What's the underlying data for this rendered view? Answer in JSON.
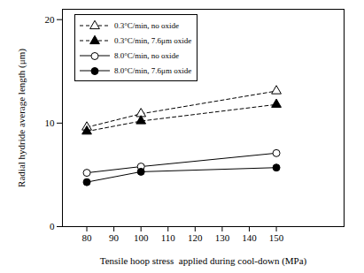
{
  "chart_data": {
    "type": "line",
    "x_label": "Tensile hoop stress  applied during cool-down (MPa)",
    "y_label": "Radial hydride average length (μm)",
    "x": [
      80,
      100,
      150
    ],
    "series": [
      {
        "name": "0.3°C/min, no oxide",
        "color": "#000000",
        "marker": "triangle-open",
        "line_style": "dashed",
        "values": [
          9.6,
          10.9,
          13.1
        ]
      },
      {
        "name": "0.3°C/min, 7.6μm oxide",
        "color": "#000000",
        "marker": "triangle",
        "line_style": "dashed",
        "values": [
          9.2,
          10.2,
          11.8
        ]
      },
      {
        "name": "8.0°C/min, no oxide",
        "color": "#000000",
        "marker": "circle-open",
        "line_style": "solid",
        "values": [
          5.2,
          5.8,
          7.1
        ]
      },
      {
        "name": "8.0°C/min, 7.6μm oxide",
        "color": "#000000",
        "marker": "circle",
        "line_style": "solid",
        "values": [
          4.3,
          5.3,
          5.7
        ]
      }
    ],
    "xlim": [
      71,
      175
    ],
    "xticks": [
      80,
      90,
      100,
      110,
      120,
      130,
      140,
      150
    ],
    "ylim": [
      0,
      21
    ],
    "yticks": [
      0,
      10,
      20
    ],
    "grid": false,
    "legend": "top-left"
  }
}
